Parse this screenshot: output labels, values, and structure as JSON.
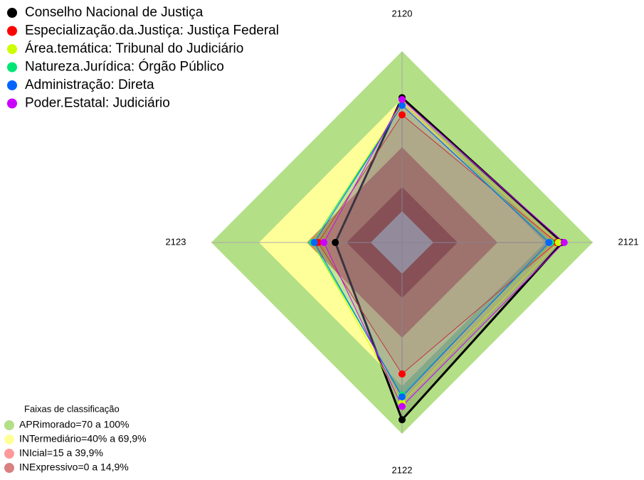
{
  "chart_data": {
    "type": "radar",
    "axes": [
      "2120",
      "2121",
      "2122",
      "2123"
    ],
    "rlim": [
      0,
      100
    ],
    "series": [
      {
        "name": "Conselho Nacional de Justiça",
        "color": "#000000",
        "values": [
          76,
          84,
          93,
          35
        ]
      },
      {
        "name": "Especialização.da.Justiça: Justiça Federal",
        "color": "#ff0000",
        "values": [
          67,
          81,
          69,
          44
        ]
      },
      {
        "name": "Área.temática: Tribunal do Judiciário",
        "color": "#ccff00",
        "values": [
          73,
          82,
          84,
          47
        ]
      },
      {
        "name": "Natureza.Jurídica: Órgão Público",
        "color": "#00e676",
        "values": [
          72,
          78,
          80,
          47
        ]
      },
      {
        "name": "Administração: Direta",
        "color": "#0066ff",
        "values": [
          72,
          77,
          81,
          46
        ]
      },
      {
        "name": "Poder.Estatal: Judiciário",
        "color": "#cc00ff",
        "values": [
          75,
          85,
          86,
          41
        ]
      }
    ],
    "band_legend": {
      "title": "Faixas de classificação",
      "items": [
        {
          "label": "APRimorado=70 a 100%",
          "color": "#b3df86"
        },
        {
          "label": "INTermediário=40% a 69,9%",
          "color": "#ffff99"
        },
        {
          "label": "INIcial=15 a 39,9%",
          "color": "#ff9a9a"
        },
        {
          "label": "INExpressivo=0 a 14,9%",
          "color": "#d98080"
        }
      ]
    }
  }
}
